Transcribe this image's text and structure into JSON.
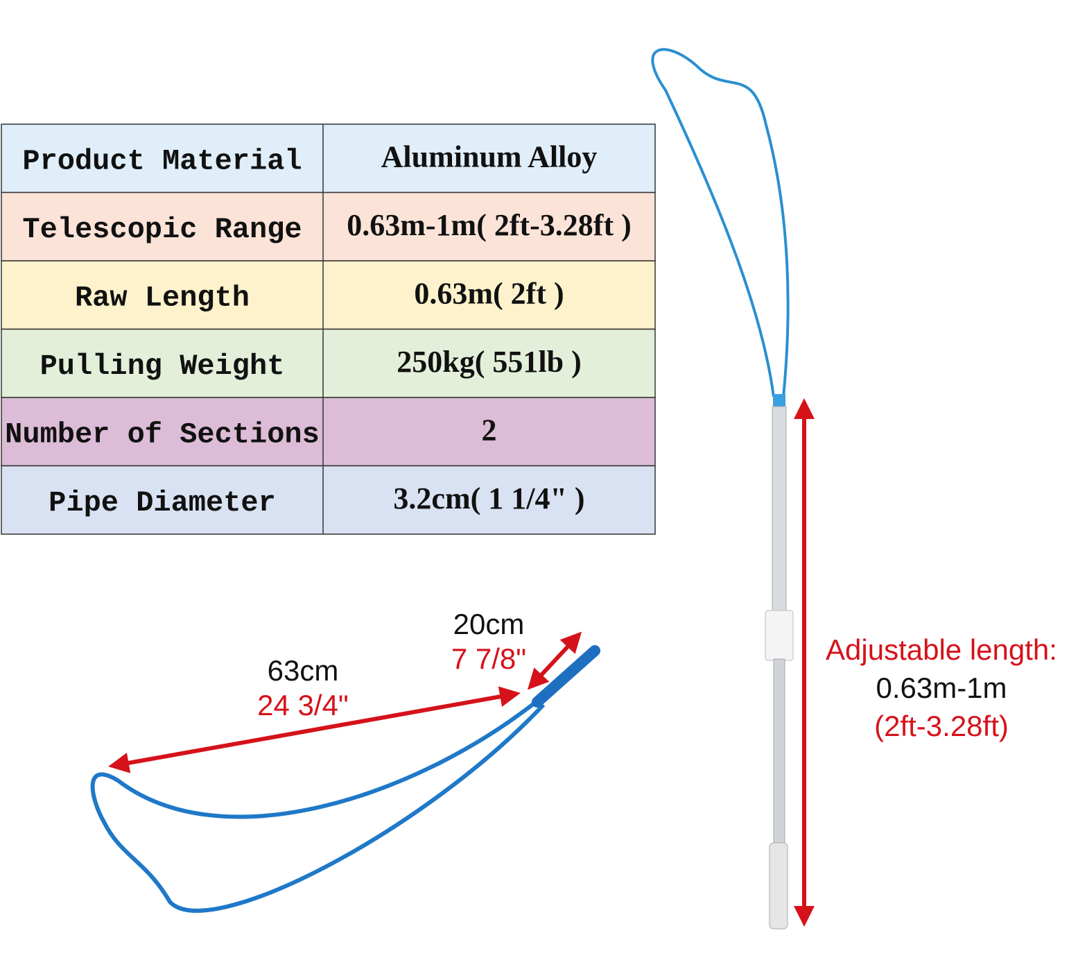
{
  "table": {
    "rows": [
      [
        "Product Material",
        "Aluminum Alloy"
      ],
      [
        "Telescopic Range",
        "0.63m-1m( 2ft-3.28ft )"
      ],
      [
        "Raw Length",
        "0.63m( 2ft )"
      ],
      [
        "Pulling Weight",
        "250kg( 551lb )"
      ],
      [
        "Number of Sections",
        "2"
      ],
      [
        "Pipe Diameter",
        "3.2cm( 1 1/4\" )"
      ]
    ]
  },
  "dimensions": {
    "handle_length": {
      "metric": "20cm",
      "imperial": "7 7/8\""
    },
    "loop_length": {
      "metric": "63cm",
      "imperial": "24 3/4\""
    },
    "adjustable_length": {
      "label": "Adjustable length:",
      "metric": "0.63m-1m",
      "imperial": "(2ft-3.28ft)"
    }
  }
}
